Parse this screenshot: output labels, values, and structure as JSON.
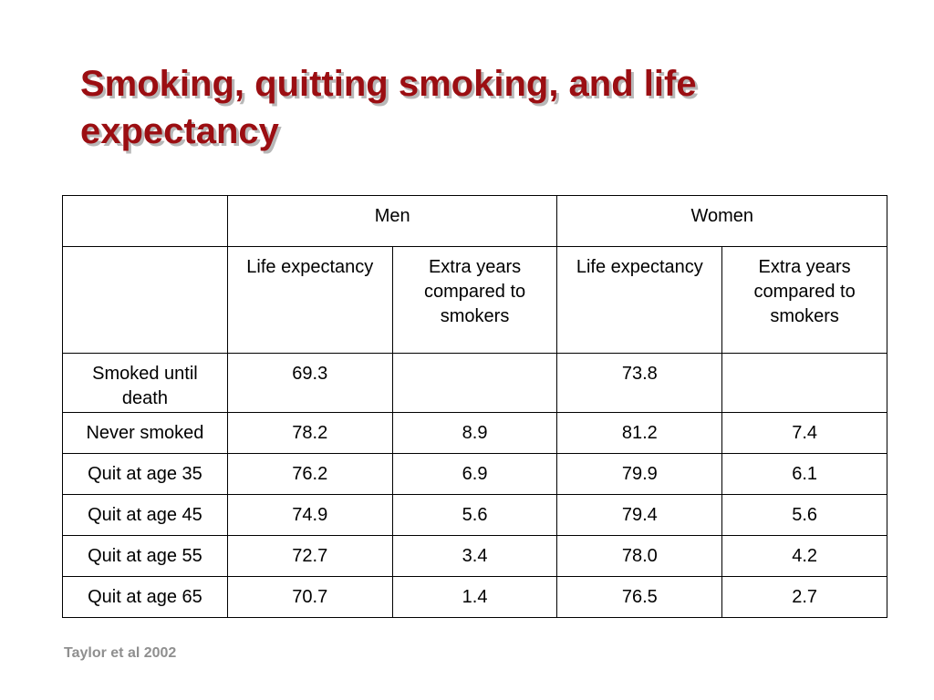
{
  "title": "Smoking, quitting smoking, and life expectancy",
  "table": {
    "groups": [
      "Men",
      "Women"
    ],
    "subheaders": [
      "Life expectancy",
      "Extra years compared to smokers",
      "Life expectancy",
      "Extra years compared to smokers"
    ],
    "rows": [
      {
        "label": "Smoked until death",
        "cells": [
          "69.3",
          "",
          "73.8",
          ""
        ]
      },
      {
        "label": "Never smoked",
        "cells": [
          "78.2",
          "8.9",
          "81.2",
          "7.4"
        ]
      },
      {
        "label": "Quit at age 35",
        "cells": [
          "76.2",
          "6.9",
          "79.9",
          "6.1"
        ]
      },
      {
        "label": "Quit at age 45",
        "cells": [
          "74.9",
          "5.6",
          "79.4",
          "5.6"
        ]
      },
      {
        "label": "Quit at age 55",
        "cells": [
          "72.7",
          "3.4",
          "78.0",
          "4.2"
        ]
      },
      {
        "label": "Quit at age 65",
        "cells": [
          "70.7",
          "1.4",
          "76.5",
          "2.7"
        ]
      }
    ]
  },
  "source": "Taylor et al 2002",
  "colors": {
    "title": "#9b0e12",
    "source": "#8f8f8f"
  }
}
